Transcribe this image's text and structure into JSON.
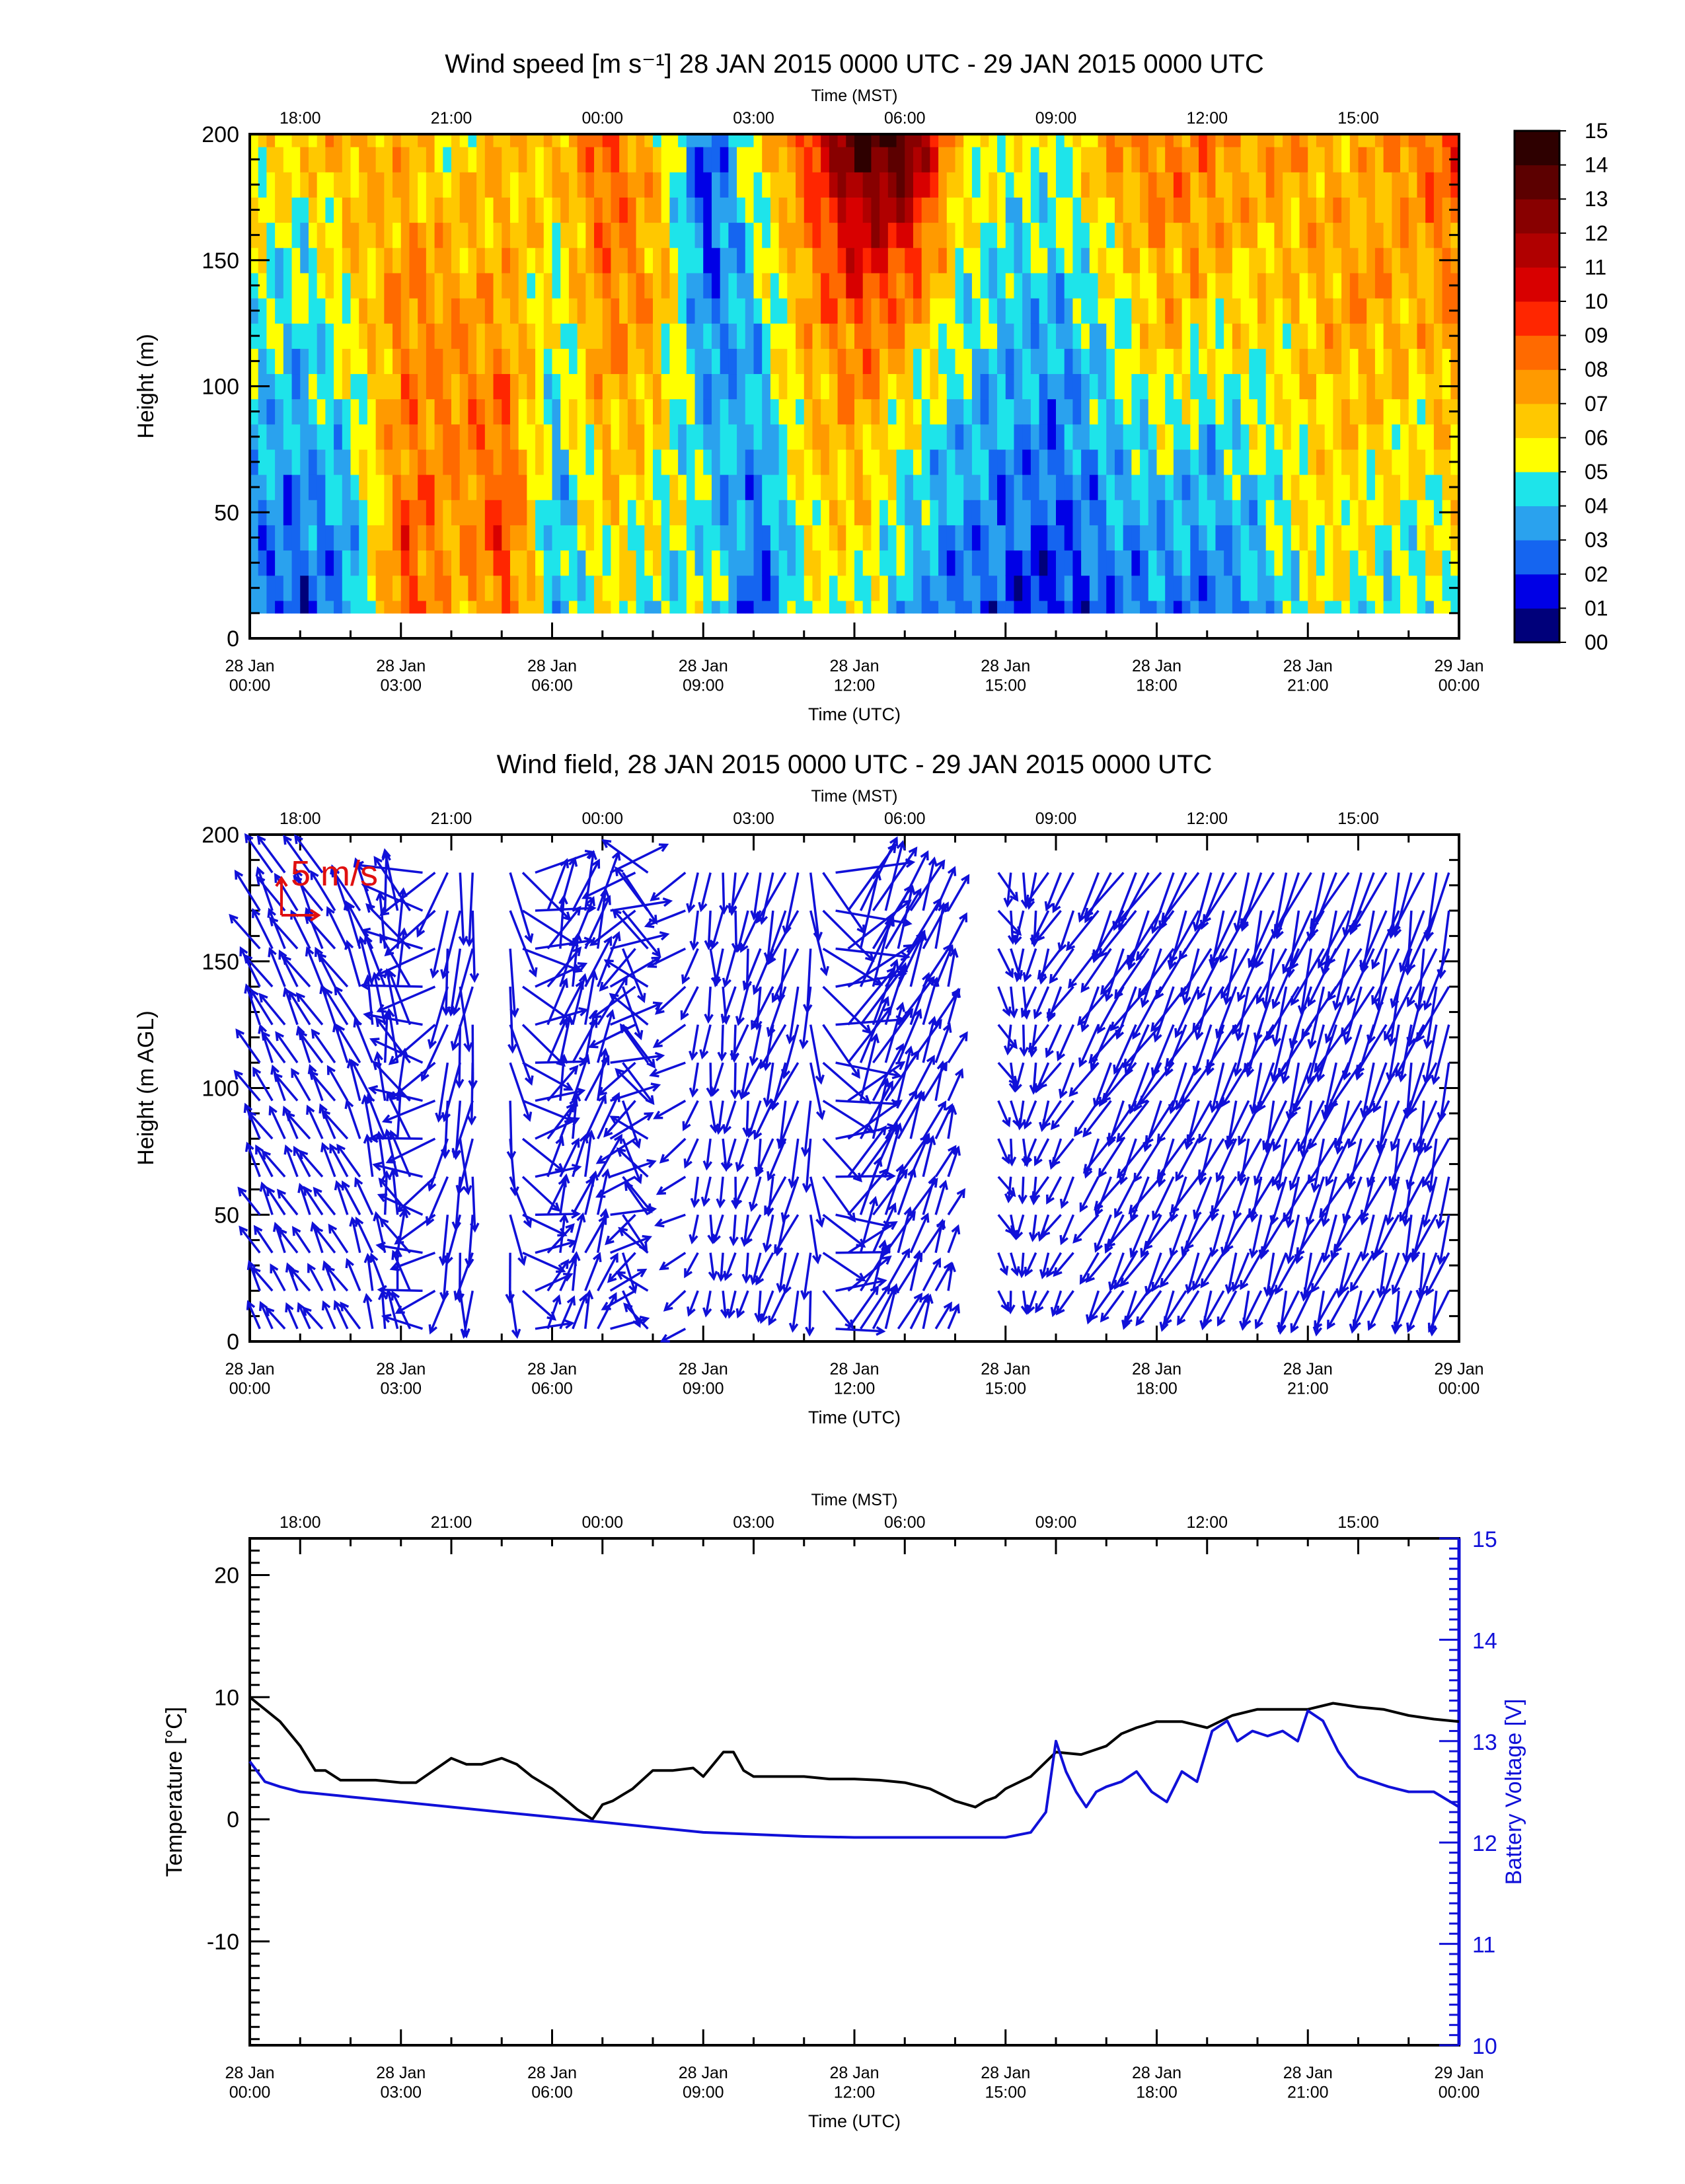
{
  "colors": {
    "frame": "#000000",
    "arrow": "#1010d8",
    "scale_arrow": "#e01010",
    "temperature_line": "#000000",
    "battery_line": "#1010d8",
    "right_axis": "#1010d8"
  },
  "chart_data": [
    {
      "type": "heatmap",
      "title": "Wind speed [m s⁻¹] 28 JAN 2015 0000 UTC - 29 JAN 2015 0000 UTC",
      "xlabel": "Time (UTC)",
      "top_axis_label": "Time (MST)",
      "ylabel": "Height (m)",
      "x_ticks": [
        "28 Jan\n00:00",
        "28 Jan\n03:00",
        "28 Jan\n06:00",
        "28 Jan\n09:00",
        "28 Jan\n12:00",
        "28 Jan\n15:00",
        "28 Jan\n18:00",
        "28 Jan\n21:00",
        "29 Jan\n00:00"
      ],
      "top_ticks": [
        "18:00",
        "21:00",
        "00:00",
        "03:00",
        "06:00",
        "09:00",
        "12:00",
        "15:00"
      ],
      "y_ticks": [
        "0",
        "50",
        "100",
        "150",
        "200"
      ],
      "ylim": [
        0,
        200
      ],
      "xlim_hours": [
        0,
        24
      ],
      "colorbar_labels": [
        "00",
        "01",
        "02",
        "03",
        "04",
        "05",
        "06",
        "07",
        "08",
        "09",
        "10",
        "11",
        "12",
        "13",
        "14",
        "15"
      ],
      "colorbar_colors": [
        "#00007a",
        "#0000e6",
        "#1565f0",
        "#2aa2ee",
        "#1ee4ea",
        "#ffff00",
        "#ffc800",
        "#ff9a00",
        "#ff6a00",
        "#ff2600",
        "#d80000",
        "#b00000",
        "#880000",
        "#5c0000",
        "#2e0000"
      ],
      "heights_m": [
        10,
        20,
        30,
        40,
        50,
        60,
        70,
        80,
        90,
        100,
        110,
        120,
        130,
        140,
        150,
        160,
        170,
        180,
        190,
        200
      ],
      "hourly_profile_speeds_bottom_to_top": [
        [
          2.5,
          2.6,
          2.8,
          3.0,
          3.2,
          3.4,
          3.6,
          3.8,
          4.0,
          4.2,
          4.4,
          4.6,
          4.8,
          5.0,
          5.2,
          5.4,
          5.6,
          5.8,
          6.0,
          6.2
        ],
        [
          2.0,
          2.2,
          2.4,
          2.6,
          2.8,
          3.0,
          3.2,
          3.4,
          3.6,
          3.8,
          4.0,
          4.2,
          4.4,
          4.6,
          4.8,
          5.0,
          5.4,
          5.8,
          6.2,
          6.5
        ],
        [
          3.5,
          3.8,
          4.0,
          4.0,
          4.2,
          4.4,
          4.6,
          4.8,
          5.0,
          5.2,
          5.4,
          5.6,
          5.8,
          6.0,
          6.2,
          6.4,
          6.6,
          6.8,
          7.0,
          7.2
        ],
        [
          9.5,
          9.2,
          9.0,
          8.8,
          8.6,
          8.4,
          8.2,
          8.0,
          8.0,
          8.0,
          8.0,
          8.0,
          8.0,
          7.8,
          7.6,
          7.4,
          7.2,
          7.0,
          7.0,
          7.0
        ],
        [
          6.5,
          6.8,
          7.0,
          7.2,
          7.4,
          7.6,
          7.8,
          8.0,
          8.0,
          8.0,
          7.8,
          7.6,
          7.4,
          7.2,
          7.0,
          6.8,
          6.6,
          6.4,
          6.2,
          6.0
        ],
        [
          8.5,
          8.8,
          9.0,
          9.2,
          9.0,
          8.8,
          8.6,
          8.4,
          8.2,
          8.0,
          7.8,
          7.6,
          7.4,
          7.2,
          7.0,
          7.0,
          7.0,
          7.0,
          7.0,
          7.0
        ],
        [
          4.0,
          4.0,
          3.8,
          3.6,
          3.6,
          3.8,
          4.0,
          4.2,
          4.4,
          4.6,
          4.8,
          5.0,
          5.2,
          5.4,
          5.6,
          5.8,
          6.0,
          6.2,
          6.4,
          6.6
        ],
        [
          5.5,
          5.8,
          6.0,
          6.2,
          6.4,
          6.6,
          6.8,
          7.0,
          7.2,
          7.4,
          7.6,
          7.8,
          8.0,
          8.2,
          8.4,
          8.6,
          8.8,
          9.0,
          9.0,
          9.0
        ],
        [
          4.5,
          4.8,
          5.0,
          5.2,
          5.4,
          5.6,
          5.8,
          6.0,
          6.2,
          6.4,
          6.6,
          6.8,
          7.0,
          7.2,
          7.0,
          6.8,
          6.6,
          6.4,
          6.2,
          6.0
        ],
        [
          5.0,
          5.0,
          4.8,
          4.6,
          4.4,
          4.2,
          4.0,
          3.8,
          3.6,
          3.4,
          3.2,
          3.0,
          2.8,
          2.6,
          2.4,
          2.2,
          2.0,
          1.8,
          2.0,
          2.2
        ],
        [
          2.0,
          2.2,
          2.4,
          2.6,
          2.8,
          3.0,
          3.2,
          3.4,
          3.6,
          3.8,
          4.0,
          4.2,
          4.4,
          4.6,
          4.8,
          5.0,
          5.2,
          5.4,
          5.6,
          5.8
        ],
        [
          5.0,
          5.2,
          5.4,
          5.6,
          5.8,
          6.0,
          6.2,
          6.4,
          6.6,
          6.8,
          7.0,
          7.2,
          7.4,
          7.6,
          7.8,
          8.0,
          8.4,
          8.8,
          9.2,
          9.6
        ],
        [
          5.5,
          5.8,
          6.0,
          6.2,
          6.4,
          6.6,
          6.8,
          7.0,
          7.4,
          7.8,
          8.2,
          8.6,
          9.0,
          9.6,
          10.2,
          11.0,
          11.8,
          12.6,
          13.4,
          14.2
        ],
        [
          3.5,
          3.6,
          3.8,
          4.0,
          4.2,
          4.4,
          4.8,
          5.2,
          5.6,
          6.0,
          6.6,
          7.2,
          7.8,
          8.6,
          9.4,
          10.2,
          11.0,
          12.0,
          13.0,
          13.8
        ],
        [
          2.5,
          2.8,
          3.0,
          3.2,
          3.4,
          3.6,
          3.8,
          4.0,
          4.2,
          4.4,
          4.6,
          4.8,
          5.0,
          5.2,
          5.4,
          5.6,
          5.8,
          6.0,
          6.2,
          6.4
        ],
        [
          2.0,
          2.2,
          2.4,
          2.6,
          2.8,
          3.0,
          3.2,
          3.4,
          3.6,
          3.6,
          3.6,
          3.8,
          4.0,
          4.2,
          4.4,
          4.6,
          4.8,
          5.0,
          5.2,
          5.4
        ],
        [
          1.5,
          1.8,
          2.0,
          2.2,
          2.4,
          2.6,
          2.6,
          2.8,
          3.0,
          3.2,
          3.4,
          3.6,
          3.8,
          4.0,
          4.2,
          4.4,
          4.6,
          4.8,
          5.0,
          5.2
        ],
        [
          2.5,
          2.8,
          3.0,
          3.2,
          3.4,
          3.6,
          3.8,
          4.0,
          4.2,
          4.4,
          4.6,
          4.8,
          5.0,
          5.4,
          5.8,
          6.2,
          6.6,
          7.0,
          7.2,
          7.4
        ],
        [
          3.0,
          3.2,
          3.4,
          3.6,
          3.8,
          4.0,
          4.4,
          4.8,
          5.2,
          5.6,
          6.0,
          6.4,
          6.8,
          7.0,
          7.2,
          7.4,
          7.6,
          7.8,
          8.0,
          8.2
        ],
        [
          2.5,
          2.8,
          3.0,
          3.2,
          3.4,
          3.6,
          3.8,
          4.2,
          4.6,
          5.0,
          5.4,
          5.8,
          6.2,
          6.6,
          7.0,
          7.2,
          7.4,
          7.6,
          7.8,
          8.0
        ],
        [
          3.5,
          3.8,
          4.0,
          4.2,
          4.4,
          4.6,
          4.8,
          5.0,
          5.2,
          5.4,
          5.6,
          5.8,
          6.0,
          6.2,
          6.4,
          6.6,
          6.8,
          7.0,
          7.2,
          7.4
        ],
        [
          5.5,
          5.6,
          5.8,
          6.0,
          6.0,
          6.0,
          6.2,
          6.2,
          6.4,
          6.4,
          6.6,
          6.6,
          6.8,
          6.8,
          7.0,
          7.0,
          7.2,
          7.2,
          7.4,
          7.4
        ],
        [
          5.0,
          5.2,
          5.4,
          5.6,
          5.8,
          6.0,
          6.2,
          6.4,
          6.6,
          6.8,
          7.0,
          7.2,
          7.4,
          7.6,
          7.4,
          7.2,
          7.0,
          6.8,
          6.8,
          6.8
        ],
        [
          4.5,
          4.6,
          4.8,
          5.0,
          5.2,
          5.4,
          5.6,
          5.8,
          6.0,
          6.2,
          6.4,
          6.6,
          6.8,
          7.0,
          7.2,
          7.4,
          7.6,
          7.8,
          8.0,
          8.2
        ],
        [
          5.5,
          5.6,
          5.8,
          6.0,
          6.2,
          6.4,
          6.6,
          6.8,
          7.0,
          7.2,
          7.4,
          7.6,
          7.8,
          8.0,
          8.2,
          8.4,
          8.6,
          8.8,
          9.0,
          9.2
        ]
      ]
    },
    {
      "type": "vector",
      "title": "Wind field, 28 JAN 2015 0000 UTC - 29 JAN 2015 0000 UTC",
      "xlabel": "Time (UTC)",
      "top_axis_label": "Time (MST)",
      "ylabel": "Height (m AGL)",
      "scale_label": "5 m/s",
      "x_ticks": [
        "28 Jan\n00:00",
        "28 Jan\n03:00",
        "28 Jan\n06:00",
        "28 Jan\n09:00",
        "28 Jan\n12:00",
        "28 Jan\n15:00",
        "28 Jan\n18:00",
        "28 Jan\n21:00",
        "29 Jan\n00:00"
      ],
      "top_ticks": [
        "18:00",
        "21:00",
        "00:00",
        "03:00",
        "06:00",
        "09:00",
        "12:00",
        "15:00"
      ],
      "y_ticks": [
        "0",
        "50",
        "100",
        "150",
        "200"
      ],
      "ylim": [
        0,
        200
      ],
      "xlim_hours": [
        0,
        24
      ],
      "vector_dir_deg_hourly": [
        330,
        330,
        330,
        360,
        180,
        200,
        15,
        20,
        345,
        180,
        195,
        200,
        25,
        25,
        20,
        170,
        210,
        210,
        210,
        205,
        200,
        200,
        205,
        195,
        200
      ],
      "vector_speed_ms_hourly": [
        4.5,
        4.0,
        4.5,
        6.0,
        6.5,
        7.0,
        5.0,
        6.0,
        5.0,
        3.5,
        4.0,
        6.0,
        8.0,
        6.0,
        3.5,
        3.0,
        3.5,
        5.0,
        6.0,
        5.5,
        5.5,
        6.5,
        6.0,
        6.0,
        6.5
      ]
    },
    {
      "type": "line",
      "xlabel": "Time (UTC)",
      "top_axis_label": "Time (MST)",
      "ylabel": "Temperature [°C]",
      "y2label": "Battery Voltage [V]",
      "x_ticks": [
        "28 Jan\n00:00",
        "28 Jan\n03:00",
        "28 Jan\n06:00",
        "28 Jan\n09:00",
        "28 Jan\n12:00",
        "28 Jan\n15:00",
        "28 Jan\n18:00",
        "28 Jan\n21:00",
        "29 Jan\n00:00"
      ],
      "top_ticks": [
        "18:00",
        "21:00",
        "00:00",
        "03:00",
        "06:00",
        "09:00",
        "12:00",
        "15:00"
      ],
      "y_ticks": [
        "-10",
        "0",
        "10",
        "20"
      ],
      "y2_ticks": [
        "10",
        "11",
        "12",
        "13",
        "14",
        "15"
      ],
      "ylim": [
        -18.5,
        23
      ],
      "y2lim": [
        10,
        15
      ],
      "xlim_hours": [
        0,
        24
      ],
      "series": [
        {
          "name": "Temperature",
          "axis": "left",
          "x_hours": [
            0,
            0.3,
            0.6,
            1.0,
            1.3,
            1.5,
            1.8,
            2.0,
            2.5,
            3.0,
            3.3,
            4.0,
            4.3,
            4.6,
            5.0,
            5.3,
            5.6,
            6.0,
            6.3,
            6.5,
            6.8,
            7.0,
            7.2,
            7.4,
            7.6,
            8.0,
            8.4,
            8.8,
            9.0,
            9.4,
            9.6,
            9.8,
            10.0,
            10.2,
            10.6,
            11.0,
            11.5,
            12.0,
            12.5,
            13.0,
            13.5,
            14.0,
            14.4,
            14.6,
            14.8,
            15.0,
            15.5,
            16.0,
            16.5,
            17.0,
            17.3,
            17.6,
            18.0,
            18.5,
            19.0,
            19.5,
            20.0,
            20.5,
            21.0,
            21.5,
            22.0,
            22.5,
            23.0,
            23.5,
            24.0
          ],
          "values": [
            10.0,
            9.0,
            8.0,
            6.0,
            4.0,
            4.0,
            3.2,
            3.2,
            3.2,
            3.0,
            3.0,
            5.0,
            4.5,
            4.5,
            5.0,
            4.5,
            3.5,
            2.5,
            1.5,
            0.8,
            0.0,
            1.2,
            1.5,
            2.0,
            2.5,
            4.0,
            4.0,
            4.2,
            3.5,
            5.5,
            5.5,
            4.0,
            3.5,
            3.5,
            3.5,
            3.5,
            3.3,
            3.3,
            3.2,
            3.0,
            2.5,
            1.5,
            1.0,
            1.5,
            1.8,
            2.5,
            3.5,
            5.5,
            5.3,
            6.0,
            7.0,
            7.5,
            8.0,
            8.0,
            7.5,
            8.5,
            9.0,
            9.0,
            9.0,
            9.5,
            9.2,
            9.0,
            8.5,
            8.2,
            8.0
          ]
        },
        {
          "name": "Battery Voltage",
          "axis": "right",
          "x_hours": [
            0,
            0.3,
            0.6,
            1.0,
            2.0,
            3.0,
            4.0,
            5.0,
            6.0,
            7.0,
            8.0,
            9.0,
            10.0,
            11.0,
            12.0,
            13.0,
            14.0,
            15.0,
            15.5,
            15.8,
            16.0,
            16.2,
            16.4,
            16.6,
            16.8,
            17.0,
            17.3,
            17.6,
            17.9,
            18.2,
            18.5,
            18.8,
            19.1,
            19.4,
            19.6,
            19.9,
            20.2,
            20.5,
            20.8,
            21.0,
            21.3,
            21.6,
            21.8,
            22.0,
            22.3,
            22.6,
            23.0,
            23.5,
            24.0
          ],
          "values": [
            12.8,
            12.6,
            12.55,
            12.5,
            12.45,
            12.4,
            12.35,
            12.3,
            12.25,
            12.2,
            12.15,
            12.1,
            12.08,
            12.06,
            12.05,
            12.05,
            12.05,
            12.05,
            12.1,
            12.3,
            13.0,
            12.7,
            12.5,
            12.35,
            12.5,
            12.55,
            12.6,
            12.7,
            12.5,
            12.4,
            12.7,
            12.6,
            13.1,
            13.2,
            13.0,
            13.1,
            13.05,
            13.1,
            13.0,
            13.3,
            13.2,
            12.9,
            12.75,
            12.65,
            12.6,
            12.55,
            12.5,
            12.5,
            12.35
          ]
        }
      ]
    }
  ]
}
